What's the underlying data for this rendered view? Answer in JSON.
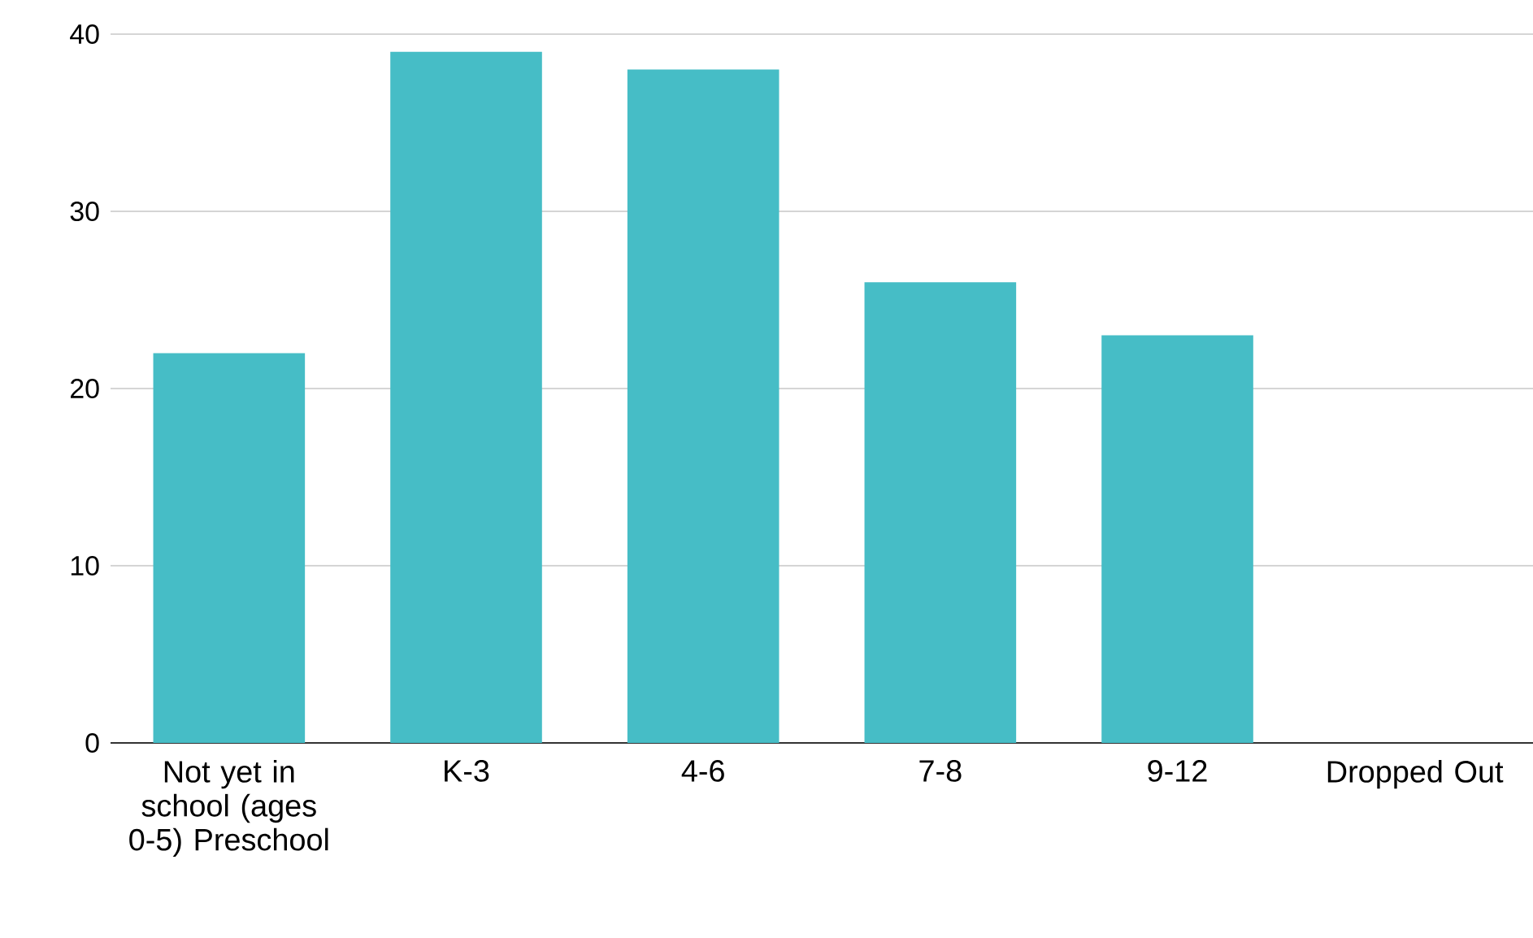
{
  "chart_data": {
    "type": "bar",
    "categories": [
      "Not yet in school (ages 0-5) Preschool",
      "K-3",
      "4-6",
      "7-8",
      "9-12",
      "Dropped Out"
    ],
    "values": [
      22,
      39,
      38,
      26,
      23,
      0
    ],
    "color": "#46bdc6",
    "ylim": [
      0,
      40
    ],
    "yticks": [
      0,
      10,
      20,
      30,
      40
    ],
    "grid": "y"
  }
}
